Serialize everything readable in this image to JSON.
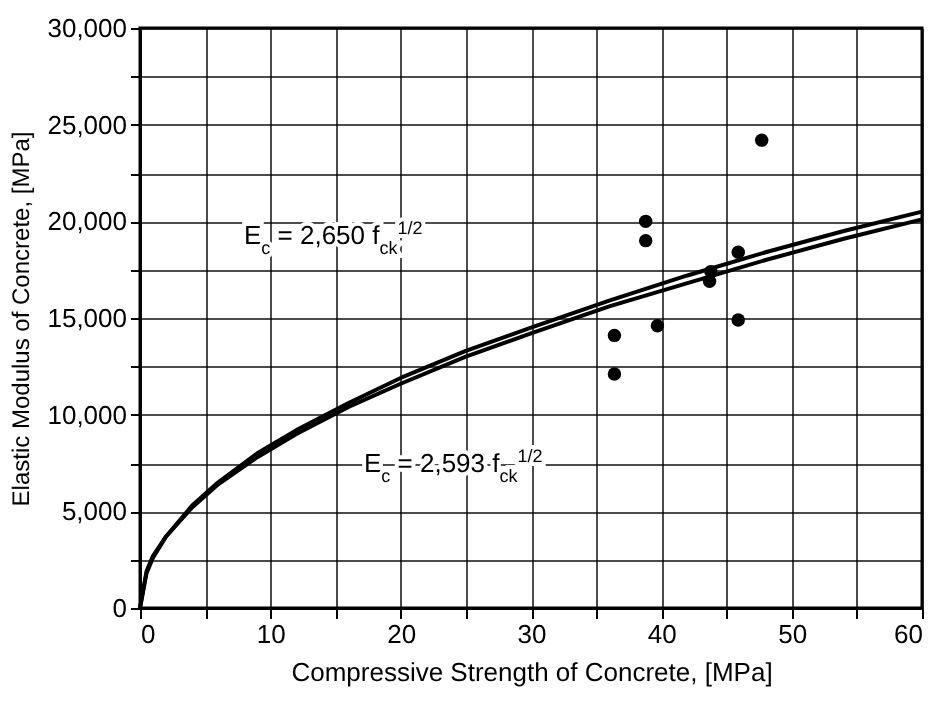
{
  "chart_data": {
    "type": "line",
    "xlabel": "Compressive Strength of Concrete,  [MPa]",
    "ylabel": "Elastic Modulus of Concrete,  [MPa]",
    "xlim": [
      0,
      60
    ],
    "ylim": [
      0,
      30000
    ],
    "xticks": [
      0,
      {
        "value": 5,
        "label": null
      },
      10,
      {
        "value": 15,
        "label": null
      },
      20,
      {
        "value": 25,
        "label": null
      },
      30,
      {
        "value": 35,
        "label": null
      },
      40,
      {
        "value": 45,
        "label": null
      },
      50,
      {
        "value": 55,
        "label": null
      },
      60
    ],
    "yticks": [
      0,
      {
        "value": 2500,
        "label": null
      },
      {
        "value": 5000,
        "label": "5,000"
      },
      {
        "value": 7500,
        "label": null
      },
      {
        "value": 10000,
        "label": "10,000"
      },
      {
        "value": 12500,
        "label": null
      },
      {
        "value": 15000,
        "label": "15,000"
      },
      {
        "value": 17500,
        "label": null
      },
      {
        "value": 20000,
        "label": "20,000"
      },
      {
        "value": 22500,
        "label": null
      },
      {
        "value": 25000,
        "label": "25,000"
      },
      {
        "value": 27500,
        "label": null
      },
      {
        "value": 30000,
        "label": "30,000"
      }
    ],
    "grid": true,
    "series": [
      {
        "color": "#000000",
        "x": [
          0,
          0.5,
          1,
          2,
          4,
          6,
          9,
          12,
          16,
          20,
          25,
          30,
          36,
          42,
          48,
          54,
          60
        ],
        "values": [
          0,
          1900,
          2700,
          3700,
          5300,
          6500,
          8000,
          9200,
          10600,
          11900,
          13300,
          14500,
          15900,
          17200,
          18400,
          19500,
          20500
        ]
      },
      {
        "color": "#000000",
        "x": [
          0,
          0.5,
          1,
          2,
          4,
          6,
          9,
          12,
          16,
          20,
          25,
          30,
          36,
          42,
          48,
          54,
          60
        ],
        "values": [
          0,
          1800,
          2600,
          3700,
          5200,
          6400,
          7800,
          9000,
          10400,
          11600,
          13000,
          14200,
          15600,
          16800,
          18000,
          19100,
          20100
        ]
      },
      {
        "type": "scatter",
        "color": "#000000",
        "marker": "circle",
        "x": [
          47.7,
          38.8,
          38.8,
          45.9,
          43.8,
          43.7,
          39.7,
          45.9,
          36.4,
          36.4
        ],
        "values": [
          24200,
          20000,
          19000,
          18400,
          17400,
          16900,
          14600,
          14900,
          14100,
          12100
        ]
      }
    ],
    "annotations": [
      "E$_{c}$ = 2,650 f$_{ck}$$^{1/2}$",
      "E$_{c}$ = 2,593 f$_{ck}$$^{1/2}$"
    ]
  }
}
